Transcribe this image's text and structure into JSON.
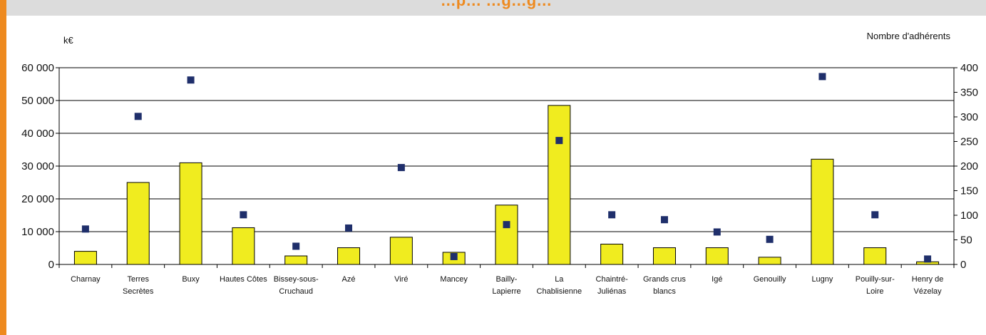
{
  "header": {
    "title": "…p… …g…g…"
  },
  "colors": {
    "accent": "#ee8a1f",
    "bar": "#f0ec1f",
    "marker": "#1f2f6b",
    "title_bar": "#dcdcdc"
  },
  "chart_data": {
    "type": "bar",
    "ylabel": "k€",
    "y2label": "Nombre d'adhérents",
    "ylim": [
      0,
      60000
    ],
    "y2lim": [
      0,
      400
    ],
    "yticks": [
      "60 000",
      "50 000",
      "40 000",
      "30 000",
      "20 000",
      "10 000",
      "0"
    ],
    "y2ticks": [
      "400",
      "350",
      "300",
      "250",
      "200",
      "150",
      "100",
      "50",
      "0"
    ],
    "grid": true,
    "categories": [
      [
        "Charnay"
      ],
      [
        "Terres",
        "Secrètes"
      ],
      [
        "Buxy"
      ],
      [
        "Hautes Côtes"
      ],
      [
        "Bissey-sous-",
        "Cruchaud"
      ],
      [
        "Azé"
      ],
      [
        "Viré"
      ],
      [
        "Mancey"
      ],
      [
        "Bailly-",
        "Lapierre"
      ],
      [
        "La",
        "Chablisienne"
      ],
      [
        "Chaintré-",
        "Juliénas"
      ],
      [
        "Grands crus",
        "blancs"
      ],
      [
        "Igé"
      ],
      [
        "Genouilly"
      ],
      [
        "Lugny"
      ],
      [
        "Pouilly-sur-",
        "Loire"
      ],
      [
        "Henry de",
        "Vézelay"
      ]
    ],
    "series": [
      {
        "type": "bar",
        "axis": "left",
        "values": [
          4000,
          25000,
          31000,
          11200,
          2600,
          5100,
          8300,
          3700,
          18100,
          48500,
          6200,
          5100,
          5100,
          2200,
          32100,
          5100,
          800
        ]
      },
      {
        "type": "scatter",
        "axis": "right",
        "values": [
          72,
          301,
          375,
          101,
          37,
          74,
          197,
          16,
          81,
          252,
          101,
          91,
          66,
          51,
          382,
          101,
          11
        ]
      }
    ]
  }
}
